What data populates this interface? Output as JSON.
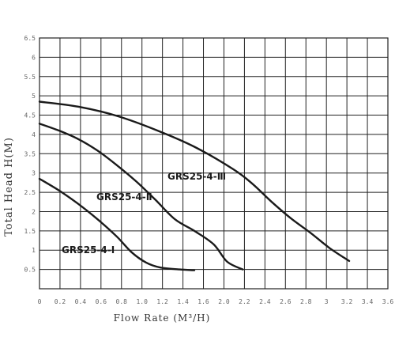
{
  "chart_data": {
    "type": "line",
    "title": "",
    "xlabel": "Flow Rate (M³/H)",
    "ylabel": "Total Head H(M)",
    "xlim": [
      0,
      3.6
    ],
    "ylim": [
      0,
      6.5
    ],
    "grid": true,
    "x_ticks": [
      "0",
      "0.2",
      "0.4",
      "0.6",
      "0.8",
      "1.0",
      "1.2",
      "1.4",
      "1.6",
      "2.0",
      "2.2",
      "2.4",
      "2.6",
      "2.8",
      "3",
      "3.2",
      "3.4",
      "3.6"
    ],
    "y_ticks": [
      "0.5",
      "1",
      "1.5",
      "2",
      "2.5",
      "3",
      "3.5",
      "4",
      "4.5",
      "5",
      "5.5",
      "6",
      "6.5"
    ],
    "series": [
      {
        "name": "GRS25-4-Ⅰ",
        "points": [
          [
            0,
            2.85
          ],
          [
            0.2,
            2.55
          ],
          [
            0.4,
            2.2
          ],
          [
            0.6,
            1.8
          ],
          [
            0.8,
            1.35
          ],
          [
            0.95,
            0.95
          ],
          [
            1.1,
            0.68
          ],
          [
            1.25,
            0.55
          ],
          [
            1.45,
            0.5
          ],
          [
            1.6,
            0.48
          ]
        ]
      },
      {
        "name": "GRS25-4-Ⅱ",
        "points": [
          [
            0,
            4.28
          ],
          [
            0.2,
            4.1
          ],
          [
            0.4,
            3.88
          ],
          [
            0.6,
            3.58
          ],
          [
            0.8,
            3.2
          ],
          [
            1.0,
            2.78
          ],
          [
            1.2,
            2.3
          ],
          [
            1.4,
            1.8
          ],
          [
            1.6,
            1.5
          ],
          [
            1.8,
            1.15
          ],
          [
            1.94,
            0.7
          ],
          [
            2.1,
            0.5
          ]
        ]
      },
      {
        "name": "GRS25-4-Ⅲ",
        "points": [
          [
            0,
            4.85
          ],
          [
            0.4,
            4.72
          ],
          [
            0.8,
            4.48
          ],
          [
            1.2,
            4.12
          ],
          [
            1.6,
            3.68
          ],
          [
            2.0,
            3.1
          ],
          [
            2.2,
            2.72
          ],
          [
            2.4,
            2.25
          ],
          [
            2.6,
            1.82
          ],
          [
            2.8,
            1.45
          ],
          [
            3.0,
            1.05
          ],
          [
            3.2,
            0.72
          ]
        ]
      }
    ],
    "annotations": [
      {
        "text": "GRS25-4-Ⅰ",
        "series": 0
      },
      {
        "text": "GRS25-4-Ⅱ",
        "series": 1
      },
      {
        "text": "GRS25-4-Ⅲ",
        "series": 2
      }
    ]
  }
}
